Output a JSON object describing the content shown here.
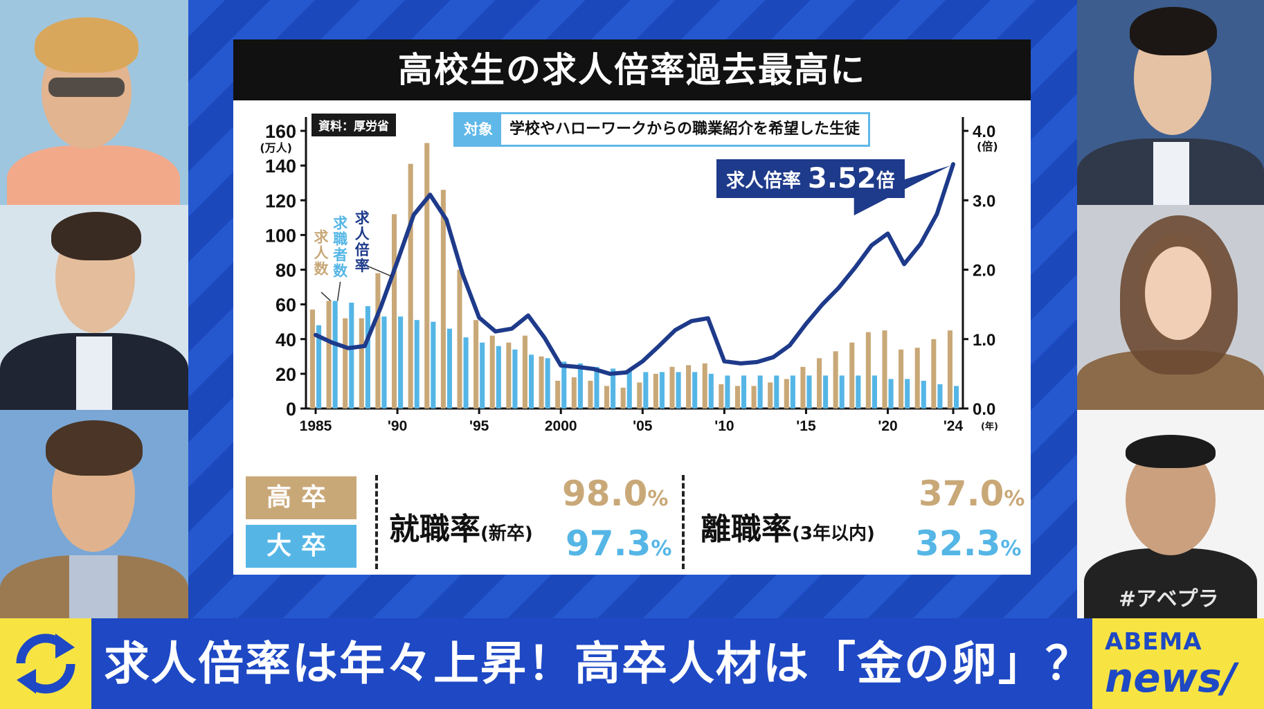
{
  "card": {
    "title": "高校生の求人倍率過去最高に",
    "source": "資料：厚労省",
    "target_label": "対象",
    "target_text": "学校やハローワークからの職業紹介を希望した生徒",
    "callout_label": "求人倍率",
    "callout_value": "3.52",
    "callout_unit": "倍"
  },
  "chart_data": {
    "type": "bar",
    "x": [
      1985,
      1986,
      1987,
      1988,
      1989,
      1990,
      1991,
      1992,
      1993,
      1994,
      1995,
      1996,
      1997,
      1998,
      1999,
      2000,
      2001,
      2002,
      2003,
      2004,
      2005,
      2006,
      2007,
      2008,
      2009,
      2010,
      2011,
      2012,
      2013,
      2014,
      2015,
      2016,
      2017,
      2018,
      2019,
      2020,
      2021,
      2022,
      2023,
      2024
    ],
    "x_tick_labels": [
      {
        "x": 1985,
        "label": "1985"
      },
      {
        "x": 1990,
        "label": "'90"
      },
      {
        "x": 1995,
        "label": "'95"
      },
      {
        "x": 2000,
        "label": "2000"
      },
      {
        "x": 2005,
        "label": "'05"
      },
      {
        "x": 2010,
        "label": "'10"
      },
      {
        "x": 2015,
        "label": "'15"
      },
      {
        "x": 2020,
        "label": "'20"
      },
      {
        "x": 2024,
        "label": "'24"
      }
    ],
    "x_unit": "(年)",
    "y_left": {
      "unit": "(万人)",
      "range": [
        0,
        160
      ],
      "ticks": [
        0,
        20,
        40,
        60,
        80,
        100,
        120,
        140,
        160
      ]
    },
    "y_right": {
      "unit": "(倍)",
      "range": [
        0,
        4
      ],
      "ticks": [
        "0.0",
        "1.0",
        "2.0",
        "3.0",
        "4.0"
      ]
    },
    "series": [
      {
        "name": "求人数",
        "type": "bar",
        "axis": "left",
        "color": "#c9a878",
        "values": [
          57,
          62,
          52,
          52,
          78,
          112,
          141,
          153,
          126,
          80,
          51,
          42,
          38,
          42,
          30,
          16,
          18,
          16,
          13,
          12,
          15,
          20,
          24,
          25,
          26,
          14,
          13,
          13,
          15,
          17,
          24,
          29,
          33,
          38,
          44,
          45,
          34,
          35,
          40,
          45
        ]
      },
      {
        "name": "求職者数",
        "type": "bar",
        "axis": "left",
        "color": "#55b6e6",
        "values": [
          48,
          62,
          61,
          59,
          53,
          53,
          51,
          50,
          46,
          41,
          38,
          36,
          34,
          31,
          29,
          27,
          26,
          24,
          23,
          22,
          21,
          21,
          21,
          21,
          20,
          19,
          19,
          19,
          19,
          19,
          19,
          19,
          19,
          19,
          19,
          17,
          17,
          16,
          14,
          13
        ]
      },
      {
        "name": "求人倍率",
        "type": "line",
        "axis": "right",
        "color": "#1e3a8a",
        "values": [
          1.06,
          0.95,
          0.87,
          0.9,
          1.47,
          2.12,
          2.79,
          3.08,
          2.72,
          1.93,
          1.31,
          1.11,
          1.15,
          1.34,
          1.02,
          0.62,
          0.6,
          0.57,
          0.5,
          0.52,
          0.68,
          0.9,
          1.13,
          1.26,
          1.3,
          0.68,
          0.65,
          0.67,
          0.74,
          0.91,
          1.22,
          1.5,
          1.74,
          2.03,
          2.35,
          2.52,
          2.08,
          2.37,
          2.8,
          3.52
        ]
      }
    ]
  },
  "stats": {
    "high_school_label": "高卒",
    "university_label": "大卒",
    "employment": {
      "label": "就職率",
      "note": "(新卒)",
      "high_school": "98.0",
      "university": "97.3",
      "unit": "%"
    },
    "turnover": {
      "label": "離職率",
      "note": "(3年以内)",
      "high_school": "37.0",
      "university": "32.3",
      "unit": "%"
    }
  },
  "colors": {
    "tan": "#c9a878",
    "sky": "#55b6e6",
    "navy": "#1e3a8a",
    "banner": "#1e48c4",
    "yellow": "#f7e443"
  },
  "banner": {
    "text": "求人倍率は年々上昇！高卒人材は「金の卵」？",
    "icon": "refresh-arrows-icon"
  },
  "brand": {
    "top": "ABEMA",
    "bottom": "news/",
    "hashtag": "#アベプラ"
  }
}
